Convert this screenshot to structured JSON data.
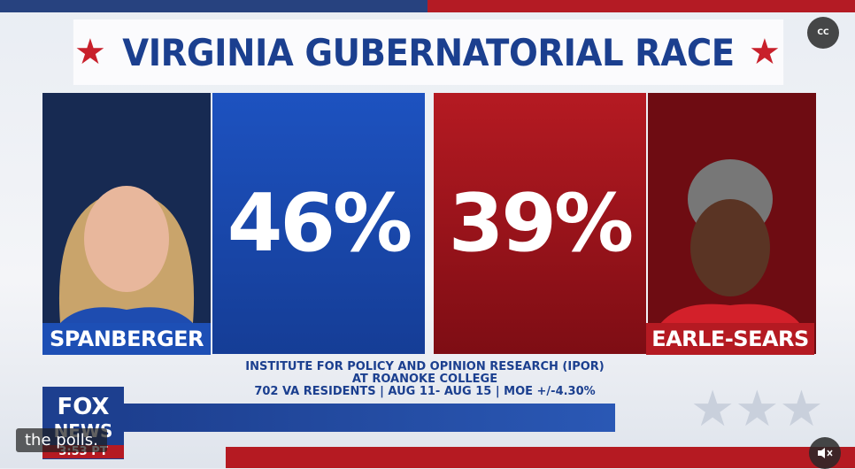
{
  "header": {
    "title": "VIRGINIA GUBERNATORIAL RACE"
  },
  "candidates": [
    {
      "name": "SPANBERGER",
      "percent": "46%"
    },
    {
      "name": "EARLE-SEARS",
      "percent": "39%"
    }
  ],
  "source": [
    "INSTITUTE FOR POLICY AND OPINION RESEARCH (IPOR)",
    "AT ROANOKE COLLEGE",
    "702 VA RESIDENTS | AUG 11- AUG 15 | MOE +/-4.30%"
  ],
  "network": {
    "logo_top": "FOX",
    "logo_bottom": "NEWS",
    "time": "3:53 PT"
  },
  "player": {
    "caption": "the polls.",
    "cc_button": "CC"
  }
}
